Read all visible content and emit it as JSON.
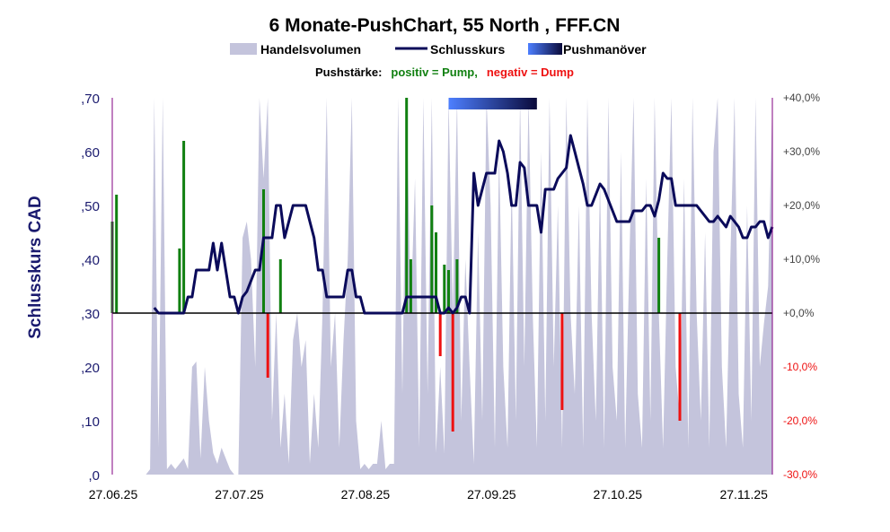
{
  "chart_data": {
    "type": "combo",
    "title": "6 Monate-PushChart, 55 North , FFF.CN",
    "legend": {
      "volume": "Handelsvolumen",
      "close": "Schlusskurs",
      "push": "Pushmanöver"
    },
    "pushstaerke": {
      "label": "Pushstärke:",
      "positive": "positiv = Pump,",
      "negative": "negativ = Dump"
    },
    "ylabel": "Schlusskurs CAD",
    "ylim": [
      0,
      0.7
    ],
    "y_ticks": [
      ",0",
      ",10",
      ",20",
      ",30",
      ",40",
      ",50",
      ",60",
      ",70"
    ],
    "y2lim": [
      -30,
      40
    ],
    "y2_ticks": [
      "-30,0%",
      "-20,0%",
      "-10,0%",
      "+0,0%",
      "+10,0%",
      "+20,0%",
      "+30,0%",
      "+40,0%"
    ],
    "x_ticks": [
      "27.06.25",
      "27.07.25",
      "27.08.25",
      "27.09.25",
      "27.10.25",
      "27.11.25"
    ],
    "colors": {
      "volume": "#c4c4dc",
      "close": "#0a0a5a",
      "pump": "#118011",
      "dump": "#ee1111",
      "axis_left": "#1a1a6e",
      "axis_right": "#800080",
      "pos_text": "#118011",
      "neg_text": "#ee1111",
      "push_bar_start": "#4d7fff",
      "push_bar_end": "#0a0a3a"
    },
    "push_period_days": [
      80,
      101
    ],
    "close_series": [
      [
        10,
        0.31
      ],
      [
        11,
        0.3
      ],
      [
        12,
        0.3
      ],
      [
        13,
        0.3
      ],
      [
        14,
        0.3
      ],
      [
        15,
        0.3
      ],
      [
        16,
        0.3
      ],
      [
        17,
        0.3
      ],
      [
        18,
        0.33
      ],
      [
        19,
        0.33
      ],
      [
        20,
        0.38
      ],
      [
        21,
        0.38
      ],
      [
        22,
        0.38
      ],
      [
        23,
        0.38
      ],
      [
        24,
        0.43
      ],
      [
        25,
        0.38
      ],
      [
        26,
        0.43
      ],
      [
        27,
        0.38
      ],
      [
        28,
        0.33
      ],
      [
        29,
        0.33
      ],
      [
        30,
        0.3
      ],
      [
        31,
        0.33
      ],
      [
        32,
        0.34
      ],
      [
        33,
        0.36
      ],
      [
        34,
        0.38
      ],
      [
        35,
        0.38
      ],
      [
        36,
        0.44
      ],
      [
        37,
        0.44
      ],
      [
        38,
        0.44
      ],
      [
        39,
        0.5
      ],
      [
        40,
        0.5
      ],
      [
        41,
        0.44
      ],
      [
        42,
        0.47
      ],
      [
        43,
        0.5
      ],
      [
        44,
        0.5
      ],
      [
        45,
        0.5
      ],
      [
        46,
        0.5
      ],
      [
        47,
        0.47
      ],
      [
        48,
        0.44
      ],
      [
        49,
        0.38
      ],
      [
        50,
        0.38
      ],
      [
        51,
        0.33
      ],
      [
        52,
        0.33
      ],
      [
        53,
        0.33
      ],
      [
        54,
        0.33
      ],
      [
        55,
        0.33
      ],
      [
        56,
        0.38
      ],
      [
        57,
        0.38
      ],
      [
        58,
        0.33
      ],
      [
        59,
        0.33
      ],
      [
        60,
        0.3
      ],
      [
        61,
        0.3
      ],
      [
        62,
        0.3
      ],
      [
        63,
        0.3
      ],
      [
        64,
        0.3
      ],
      [
        65,
        0.3
      ],
      [
        66,
        0.3
      ],
      [
        67,
        0.3
      ],
      [
        68,
        0.3
      ],
      [
        69,
        0.3
      ],
      [
        70,
        0.33
      ],
      [
        71,
        0.33
      ],
      [
        72,
        0.33
      ],
      [
        73,
        0.33
      ],
      [
        74,
        0.33
      ],
      [
        75,
        0.33
      ],
      [
        76,
        0.33
      ],
      [
        77,
        0.33
      ],
      [
        78,
        0.3
      ],
      [
        79,
        0.3
      ],
      [
        80,
        0.31
      ],
      [
        81,
        0.3
      ],
      [
        82,
        0.31
      ],
      [
        83,
        0.33
      ],
      [
        84,
        0.33
      ],
      [
        85,
        0.3
      ],
      [
        86,
        0.56
      ],
      [
        87,
        0.5
      ],
      [
        88,
        0.53
      ],
      [
        89,
        0.56
      ],
      [
        90,
        0.56
      ],
      [
        91,
        0.56
      ],
      [
        92,
        0.62
      ],
      [
        93,
        0.6
      ],
      [
        94,
        0.56
      ],
      [
        95,
        0.5
      ],
      [
        96,
        0.5
      ],
      [
        97,
        0.58
      ],
      [
        98,
        0.57
      ],
      [
        99,
        0.5
      ],
      [
        100,
        0.5
      ],
      [
        101,
        0.5
      ],
      [
        102,
        0.45
      ],
      [
        103,
        0.53
      ],
      [
        104,
        0.53
      ],
      [
        105,
        0.53
      ],
      [
        106,
        0.55
      ],
      [
        107,
        0.56
      ],
      [
        108,
        0.57
      ],
      [
        109,
        0.63
      ],
      [
        110,
        0.6
      ],
      [
        111,
        0.57
      ],
      [
        112,
        0.54
      ],
      [
        113,
        0.5
      ],
      [
        114,
        0.5
      ],
      [
        115,
        0.52
      ],
      [
        116,
        0.54
      ],
      [
        117,
        0.53
      ],
      [
        118,
        0.51
      ],
      [
        119,
        0.49
      ],
      [
        120,
        0.47
      ],
      [
        121,
        0.47
      ],
      [
        122,
        0.47
      ],
      [
        123,
        0.47
      ],
      [
        124,
        0.49
      ],
      [
        125,
        0.49
      ],
      [
        126,
        0.49
      ],
      [
        127,
        0.5
      ],
      [
        128,
        0.5
      ],
      [
        129,
        0.48
      ],
      [
        130,
        0.51
      ],
      [
        131,
        0.56
      ],
      [
        132,
        0.55
      ],
      [
        133,
        0.55
      ],
      [
        134,
        0.5
      ],
      [
        135,
        0.5
      ],
      [
        136,
        0.5
      ],
      [
        137,
        0.5
      ],
      [
        138,
        0.5
      ],
      [
        139,
        0.5
      ],
      [
        140,
        0.49
      ],
      [
        141,
        0.48
      ],
      [
        142,
        0.47
      ],
      [
        143,
        0.47
      ],
      [
        144,
        0.48
      ],
      [
        145,
        0.47
      ],
      [
        146,
        0.46
      ],
      [
        147,
        0.48
      ],
      [
        148,
        0.47
      ],
      [
        149,
        0.46
      ],
      [
        150,
        0.44
      ],
      [
        151,
        0.44
      ],
      [
        152,
        0.46
      ],
      [
        153,
        0.46
      ],
      [
        154,
        0.47
      ],
      [
        155,
        0.47
      ],
      [
        156,
        0.44
      ],
      [
        157,
        0.46
      ]
    ],
    "push_bars": [
      [
        0,
        17
      ],
      [
        1,
        22
      ],
      [
        16,
        12
      ],
      [
        17,
        32
      ],
      [
        36,
        23
      ],
      [
        37,
        -12
      ],
      [
        40,
        10
      ],
      [
        70,
        40
      ],
      [
        71,
        10
      ],
      [
        76,
        20
      ],
      [
        77,
        15
      ],
      [
        78,
        -8
      ],
      [
        79,
        9
      ],
      [
        80,
        8
      ],
      [
        81,
        -22
      ],
      [
        82,
        10
      ],
      [
        107,
        -18
      ],
      [
        130,
        14
      ],
      [
        135,
        -20
      ]
    ],
    "volume_series": [
      [
        0,
        0.0
      ],
      [
        8,
        0.0
      ],
      [
        9,
        0.01
      ],
      [
        10,
        0.7
      ],
      [
        11,
        0.05
      ],
      [
        12,
        0.7
      ],
      [
        13,
        0.01
      ],
      [
        14,
        0.02
      ],
      [
        15,
        0.01
      ],
      [
        16,
        0.02
      ],
      [
        17,
        0.03
      ],
      [
        18,
        0.01
      ],
      [
        19,
        0.2
      ],
      [
        20,
        0.21
      ],
      [
        21,
        0.03
      ],
      [
        22,
        0.2
      ],
      [
        23,
        0.1
      ],
      [
        24,
        0.04
      ],
      [
        25,
        0.02
      ],
      [
        26,
        0.05
      ],
      [
        27,
        0.03
      ],
      [
        28,
        0.01
      ],
      [
        29,
        0.0
      ],
      [
        30,
        0.0
      ],
      [
        31,
        0.44
      ],
      [
        32,
        0.47
      ],
      [
        33,
        0.4
      ],
      [
        34,
        0.2
      ],
      [
        35,
        0.7
      ],
      [
        36,
        0.55
      ],
      [
        37,
        0.7
      ],
      [
        38,
        0.1
      ],
      [
        39,
        0.3
      ],
      [
        40,
        0.05
      ],
      [
        41,
        0.15
      ],
      [
        42,
        0.02
      ],
      [
        43,
        0.25
      ],
      [
        44,
        0.3
      ],
      [
        45,
        0.2
      ],
      [
        46,
        0.25
      ],
      [
        47,
        0.02
      ],
      [
        48,
        0.15
      ],
      [
        49,
        0.05
      ],
      [
        50,
        0.3
      ],
      [
        51,
        0.7
      ],
      [
        52,
        0.2
      ],
      [
        53,
        0.3
      ],
      [
        54,
        0.05
      ],
      [
        55,
        0.25
      ],
      [
        56,
        0.4
      ],
      [
        57,
        0.7
      ],
      [
        58,
        0.1
      ],
      [
        59,
        0.01
      ],
      [
        60,
        0.02
      ],
      [
        61,
        0.01
      ],
      [
        62,
        0.02
      ],
      [
        63,
        0.02
      ],
      [
        64,
        0.1
      ],
      [
        65,
        0.01
      ],
      [
        66,
        0.02
      ],
      [
        67,
        0.02
      ],
      [
        68,
        0.7
      ],
      [
        69,
        0.15
      ],
      [
        70,
        0.7
      ],
      [
        71,
        0.3
      ],
      [
        72,
        0.55
      ],
      [
        73,
        0.05
      ],
      [
        74,
        0.7
      ],
      [
        75,
        0.15
      ],
      [
        76,
        0.7
      ],
      [
        77,
        0.04
      ],
      [
        78,
        0.2
      ],
      [
        79,
        0.04
      ],
      [
        80,
        0.7
      ],
      [
        81,
        0.3
      ],
      [
        82,
        0.7
      ],
      [
        83,
        0.1
      ],
      [
        84,
        0.4
      ],
      [
        85,
        0.2
      ],
      [
        86,
        0.02
      ],
      [
        87,
        0.45
      ],
      [
        88,
        0.1
      ],
      [
        89,
        0.7
      ],
      [
        90,
        0.5
      ],
      [
        91,
        0.05
      ],
      [
        92,
        0.6
      ],
      [
        93,
        0.2
      ],
      [
        94,
        0.05
      ],
      [
        95,
        0.55
      ],
      [
        96,
        0.1
      ],
      [
        97,
        0.7
      ],
      [
        98,
        0.2
      ],
      [
        99,
        0.7
      ],
      [
        100,
        0.3
      ],
      [
        101,
        0.05
      ],
      [
        102,
        0.6
      ],
      [
        103,
        0.1
      ],
      [
        104,
        0.7
      ],
      [
        105,
        0.2
      ],
      [
        106,
        0.5
      ],
      [
        107,
        0.05
      ],
      [
        108,
        0.7
      ],
      [
        109,
        0.3
      ],
      [
        110,
        0.15
      ],
      [
        111,
        0.5
      ],
      [
        112,
        0.05
      ],
      [
        113,
        0.7
      ],
      [
        114,
        0.3
      ],
      [
        115,
        0.1
      ],
      [
        116,
        0.55
      ],
      [
        117,
        0.05
      ],
      [
        118,
        0.7
      ],
      [
        119,
        0.2
      ],
      [
        120,
        0.1
      ],
      [
        121,
        0.6
      ],
      [
        122,
        0.05
      ],
      [
        123,
        0.4
      ],
      [
        124,
        0.7
      ],
      [
        125,
        0.15
      ],
      [
        126,
        0.05
      ],
      [
        127,
        0.55
      ],
      [
        128,
        0.1
      ],
      [
        129,
        0.7
      ],
      [
        130,
        0.3
      ],
      [
        131,
        0.05
      ],
      [
        132,
        0.4
      ],
      [
        133,
        0.7
      ],
      [
        134,
        0.2
      ],
      [
        135,
        0.1
      ],
      [
        136,
        0.55
      ],
      [
        137,
        0.05
      ],
      [
        138,
        0.7
      ],
      [
        139,
        0.3
      ],
      [
        140,
        0.1
      ],
      [
        141,
        0.45
      ],
      [
        142,
        0.05
      ],
      [
        143,
        0.6
      ],
      [
        144,
        0.7
      ],
      [
        145,
        0.2
      ],
      [
        146,
        0.05
      ],
      [
        147,
        0.4
      ],
      [
        148,
        0.7
      ],
      [
        149,
        0.15
      ],
      [
        150,
        0.05
      ],
      [
        151,
        0.5
      ],
      [
        152,
        0.1
      ],
      [
        153,
        0.7
      ],
      [
        154,
        0.2
      ],
      [
        155,
        0.28
      ],
      [
        156,
        0.35
      ],
      [
        157,
        0.7
      ]
    ]
  }
}
